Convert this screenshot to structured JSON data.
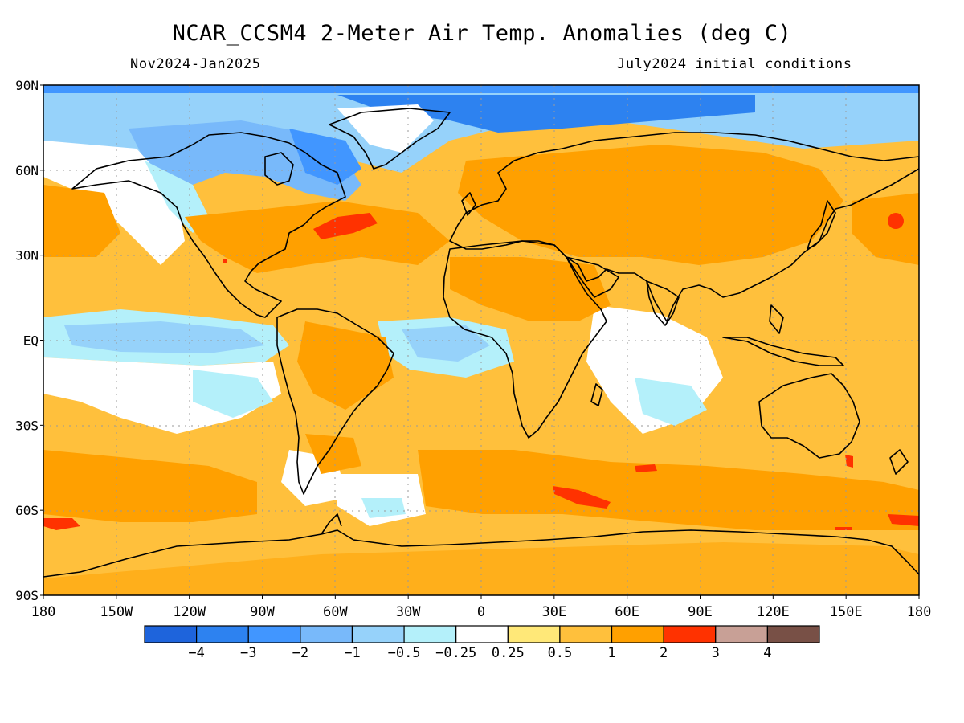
{
  "title": "NCAR_CCSM4 2-Meter Air Temp. Anomalies (deg C)",
  "subtitle_left": "Nov2024-Jan2025",
  "subtitle_right": "July2024 initial conditions",
  "lat_labels": [
    "90N",
    "60N",
    "30N",
    "EQ",
    "30S",
    "60S",
    "90S"
  ],
  "lon_labels": [
    "180",
    "150W",
    "120W",
    "90W",
    "60W",
    "30W",
    "0",
    "30E",
    "60E",
    "90E",
    "120E",
    "150E",
    "180"
  ],
  "colorbar": {
    "colors": [
      "#1e64dc",
      "#2d82f0",
      "#4196ff",
      "#78b9fa",
      "#96d2fa",
      "#b4f0fa",
      "#ffffff",
      "#ffe878",
      "#ffc03c",
      "#ffa000",
      "#ff3200",
      "#c8a096",
      "#785046"
    ],
    "labels": [
      "-4",
      "-3",
      "-2",
      "-1",
      "-0.5",
      "-0.25",
      "0.25",
      "0.5",
      "1",
      "2",
      "3",
      "4"
    ]
  }
}
